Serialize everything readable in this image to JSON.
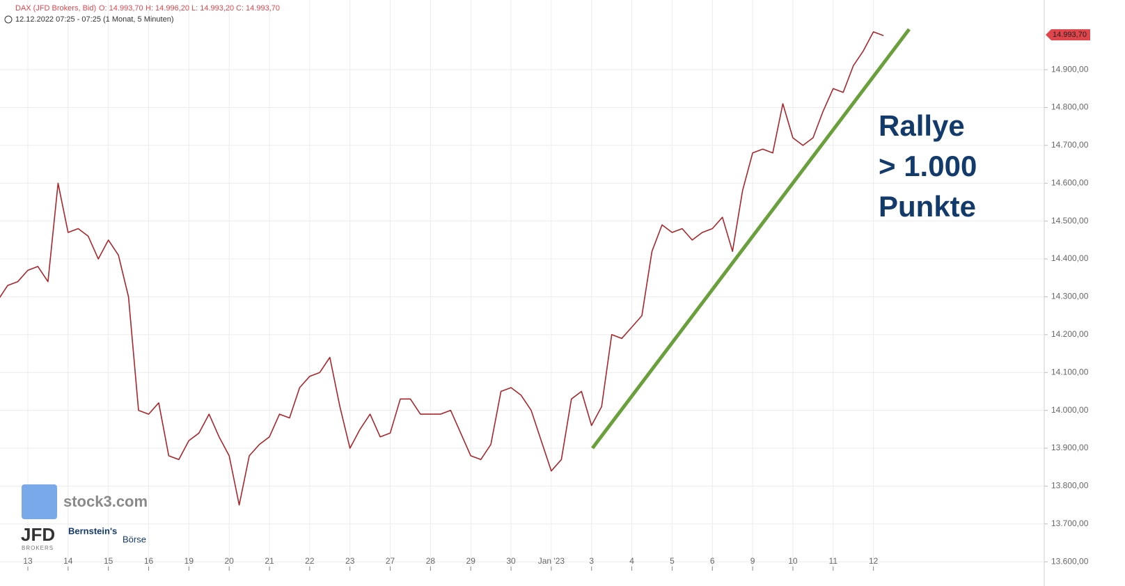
{
  "chart_data": {
    "type": "line",
    "header": {
      "instrument": "DAX (JFD Brokers, Bid)",
      "open": "O: 14.993,70",
      "high": "H: 14.996,20",
      "low": "L: 14.993,20",
      "close": "C: 14.993,70",
      "time": "12.12.2022 07:25 - 07:25",
      "period": "(1 Monat, 5 Minuten)"
    },
    "annotation": [
      "Rallye",
      "> 1.000",
      "Punkte"
    ],
    "last_price_label": "14.993,70",
    "logos": [
      "stock3.com",
      "BROKERS",
      "Bernstein's",
      "Börse"
    ],
    "color": "#a8262b",
    "grid": true,
    "categories": [
      null,
      null,
      null,
      "13",
      null,
      null,
      null,
      "14",
      null,
      null,
      null,
      "15",
      null,
      null,
      null,
      "16",
      null,
      null,
      null,
      "19",
      null,
      null,
      null,
      "20",
      null,
      null,
      null,
      "21",
      null,
      null,
      null,
      "22",
      null,
      null,
      null,
      "23",
      null,
      null,
      null,
      "27",
      null,
      null,
      null,
      "28",
      null,
      null,
      null,
      "29",
      null,
      null,
      null,
      "30",
      null,
      null,
      null,
      "Jan '23",
      null,
      null,
      null,
      "3",
      null,
      null,
      null,
      "4",
      null,
      null,
      null,
      "5",
      null,
      null,
      null,
      "6",
      null,
      null,
      null,
      "9",
      null,
      null,
      null,
      "10",
      null,
      null,
      null,
      "11",
      null,
      null,
      null,
      "12",
      null
    ],
    "values": [
      14290,
      14330,
      14340,
      14370,
      14380,
      14340,
      14600,
      14470,
      14480,
      14460,
      14400,
      14450,
      14410,
      14300,
      14000,
      13990,
      14020,
      13880,
      13870,
      13920,
      13940,
      13990,
      13930,
      13880,
      13750,
      13880,
      13910,
      13930,
      13990,
      13980,
      14060,
      14090,
      14100,
      14140,
      14010,
      13900,
      13950,
      13990,
      13930,
      13940,
      14030,
      14030,
      13990,
      13990,
      13990,
      14000,
      13940,
      13880,
      13870,
      13910,
      14050,
      14060,
      14040,
      14000,
      13920,
      13840,
      13870,
      14030,
      14050,
      13960,
      14010,
      14200,
      14190,
      14220,
      14250,
      14420,
      14490,
      14470,
      14480,
      14450,
      14470,
      14480,
      14510,
      14420,
      14580,
      14680,
      14690,
      14680,
      14810,
      14720,
      14700,
      14720,
      14790,
      14850,
      14840,
      14910,
      14950,
      15000,
      14990
    ],
    "ylim": [
      13582,
      15084
    ],
    "yticks": [
      {
        "value": 13600,
        "label": "13.600,00"
      },
      {
        "value": 13700,
        "label": "13.700,00"
      },
      {
        "value": 13800,
        "label": "13.800,00"
      },
      {
        "value": 13900,
        "label": "13.900,00"
      },
      {
        "value": 14000,
        "label": "14.000,00"
      },
      {
        "value": 14100,
        "label": "14.100,00"
      },
      {
        "value": 14200,
        "label": "14.200,00"
      },
      {
        "value": 14300,
        "label": "14.300,00"
      },
      {
        "value": 14400,
        "label": "14.400,00"
      },
      {
        "value": 14500,
        "label": "14.500,00"
      },
      {
        "value": 14600,
        "label": "14.600,00"
      },
      {
        "value": 14700,
        "label": "14.700,00"
      },
      {
        "value": 14800,
        "label": "14.800,00"
      },
      {
        "value": 14900,
        "label": "14.900,00"
      }
    ]
  }
}
